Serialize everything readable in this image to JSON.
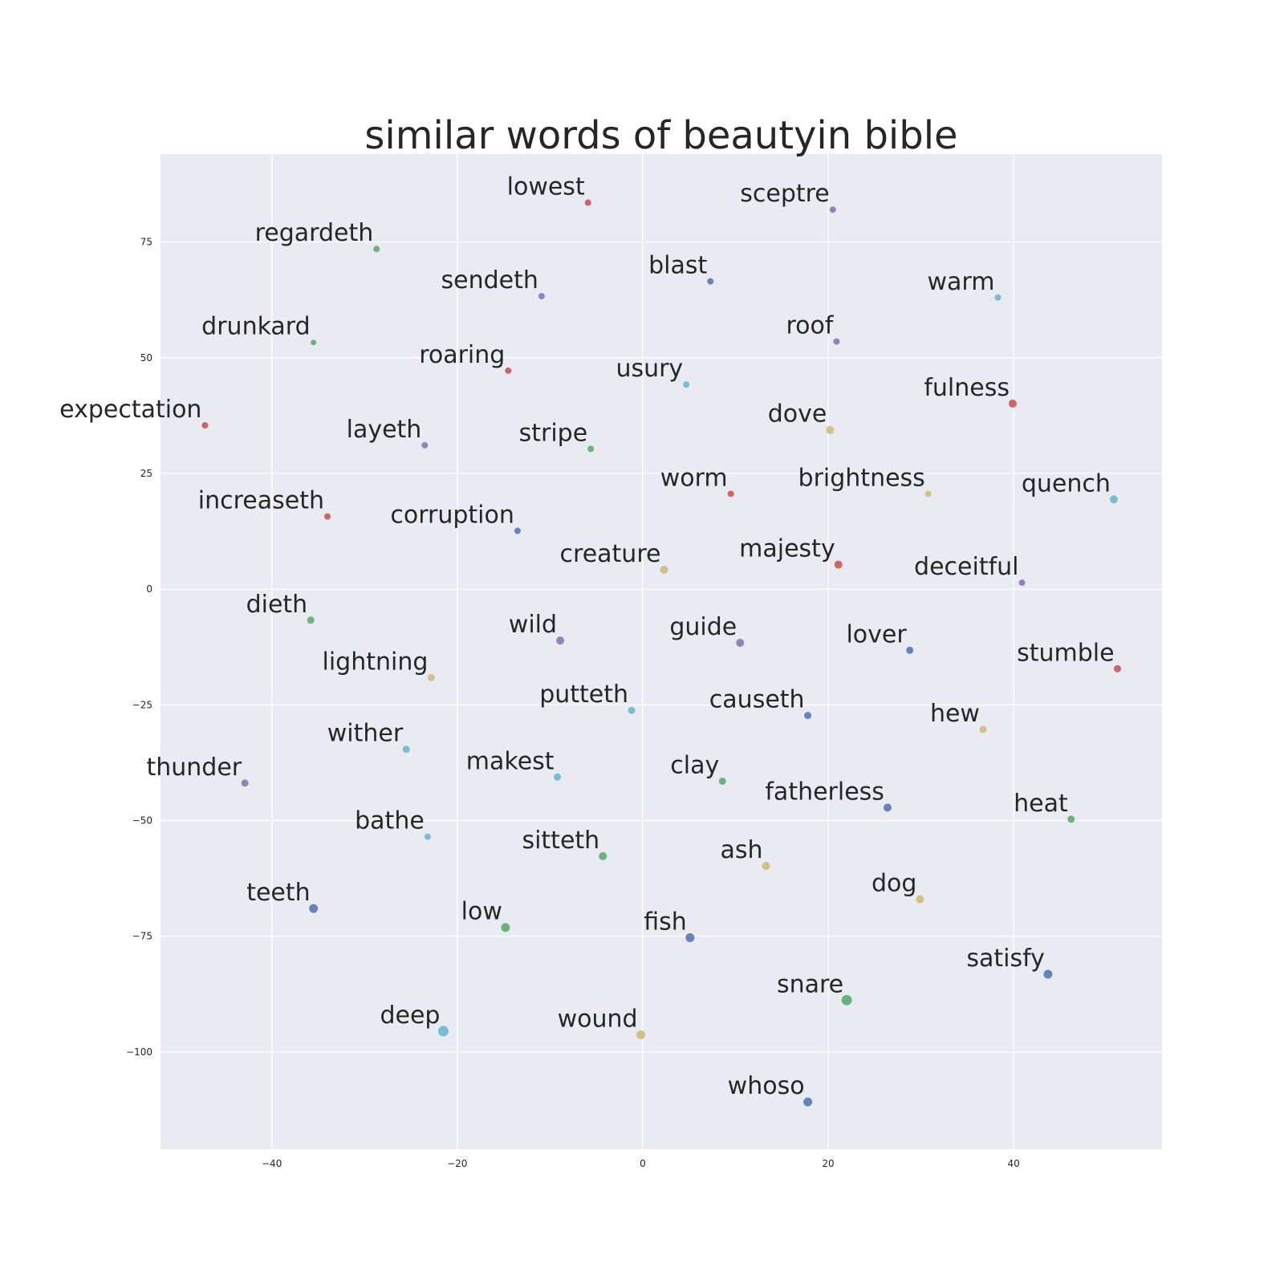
{
  "chart_data": {
    "type": "scatter",
    "title": "similar words of beautyin bible",
    "xlabel": "",
    "ylabel": "",
    "xlim": [
      -52,
      56
    ],
    "ylim": [
      -121,
      94
    ],
    "xticks": [
      -40,
      -20,
      0,
      20,
      40
    ],
    "yticks": [
      75,
      50,
      25,
      0,
      -25,
      -50,
      -75,
      -100
    ],
    "grid": true,
    "background": "#EAEAF2",
    "palette": {
      "blue": "#4C72B0",
      "green": "#55A868",
      "red": "#C44E52",
      "purple": "#8172B2",
      "yellow": "#CCB974",
      "cyan": "#64B5CD"
    },
    "points": [
      {
        "label": "lowest",
        "x": -5.9,
        "y": 83.5,
        "size": 4,
        "color": "red"
      },
      {
        "label": "sceptre",
        "x": 20.5,
        "y": 82.0,
        "size": 4,
        "color": "purple"
      },
      {
        "label": "regardeth",
        "x": -28.7,
        "y": 73.5,
        "size": 4,
        "color": "green"
      },
      {
        "label": "blast",
        "x": 7.3,
        "y": 66.5,
        "size": 4,
        "color": "blue"
      },
      {
        "label": "sendeth",
        "x": -10.9,
        "y": 63.3,
        "size": 4,
        "color": "purple"
      },
      {
        "label": "warm",
        "x": 38.3,
        "y": 63.0,
        "size": 4,
        "color": "cyan"
      },
      {
        "label": "drunkard",
        "x": -35.5,
        "y": 53.3,
        "size": 3.5,
        "color": "green"
      },
      {
        "label": "roof",
        "x": 20.9,
        "y": 53.5,
        "size": 4,
        "color": "purple"
      },
      {
        "label": "roaring",
        "x": -14.5,
        "y": 47.2,
        "size": 4,
        "color": "red"
      },
      {
        "label": "usury",
        "x": 4.7,
        "y": 44.2,
        "size": 4,
        "color": "cyan"
      },
      {
        "label": "fulness",
        "x": 39.9,
        "y": 40.1,
        "size": 5,
        "color": "red"
      },
      {
        "label": "expectation",
        "x": -47.2,
        "y": 35.4,
        "size": 4,
        "color": "red"
      },
      {
        "label": "dove",
        "x": 20.2,
        "y": 34.4,
        "size": 5,
        "color": "yellow"
      },
      {
        "label": "layeth",
        "x": -23.5,
        "y": 31.1,
        "size": 4,
        "color": "purple"
      },
      {
        "label": "stripe",
        "x": -5.6,
        "y": 30.3,
        "size": 4,
        "color": "green"
      },
      {
        "label": "worm",
        "x": 9.5,
        "y": 20.6,
        "size": 4,
        "color": "red"
      },
      {
        "label": "brightness",
        "x": 30.8,
        "y": 20.6,
        "size": 4,
        "color": "yellow"
      },
      {
        "label": "quench",
        "x": 50.8,
        "y": 19.4,
        "size": 5,
        "color": "cyan"
      },
      {
        "label": "increaseth",
        "x": -34.0,
        "y": 15.7,
        "size": 4,
        "color": "red"
      },
      {
        "label": "corruption",
        "x": -13.5,
        "y": 12.6,
        "size": 4,
        "color": "blue"
      },
      {
        "label": "creature",
        "x": 2.3,
        "y": 4.2,
        "size": 5,
        "color": "yellow"
      },
      {
        "label": "majesty",
        "x": 21.1,
        "y": 5.3,
        "size": 5,
        "color": "red"
      },
      {
        "label": "deceitful",
        "x": 40.9,
        "y": 1.4,
        "size": 4,
        "color": "purple"
      },
      {
        "label": "dieth",
        "x": -35.8,
        "y": -6.7,
        "size": 4.5,
        "color": "green"
      },
      {
        "label": "wild",
        "x": -8.9,
        "y": -11.1,
        "size": 5,
        "color": "purple"
      },
      {
        "label": "guide",
        "x": 10.5,
        "y": -11.6,
        "size": 5,
        "color": "purple"
      },
      {
        "label": "lover",
        "x": 28.8,
        "y": -13.2,
        "size": 4.5,
        "color": "blue"
      },
      {
        "label": "stumble",
        "x": 51.2,
        "y": -17.2,
        "size": 4.5,
        "color": "red"
      },
      {
        "label": "lightning",
        "x": -22.8,
        "y": -19.1,
        "size": 4.5,
        "color": "yellow"
      },
      {
        "label": "putteth",
        "x": -1.2,
        "y": -26.2,
        "size": 4.5,
        "color": "cyan"
      },
      {
        "label": "causeth",
        "x": 17.8,
        "y": -27.3,
        "size": 4.5,
        "color": "blue"
      },
      {
        "label": "hew",
        "x": 36.7,
        "y": -30.3,
        "size": 4.5,
        "color": "yellow"
      },
      {
        "label": "wither",
        "x": -25.5,
        "y": -34.6,
        "size": 4.5,
        "color": "cyan"
      },
      {
        "label": "makest",
        "x": -9.2,
        "y": -40.6,
        "size": 4.5,
        "color": "cyan"
      },
      {
        "label": "clay",
        "x": 8.6,
        "y": -41.5,
        "size": 4.5,
        "color": "green"
      },
      {
        "label": "thunder",
        "x": -42.9,
        "y": -41.9,
        "size": 4.5,
        "color": "purple"
      },
      {
        "label": "fatherless",
        "x": 26.4,
        "y": -47.2,
        "size": 5,
        "color": "blue"
      },
      {
        "label": "heat",
        "x": 46.2,
        "y": -49.7,
        "size": 4.5,
        "color": "green"
      },
      {
        "label": "bathe",
        "x": -23.2,
        "y": -53.5,
        "size": 4,
        "color": "cyan"
      },
      {
        "label": "sitteth",
        "x": -4.3,
        "y": -57.7,
        "size": 5,
        "color": "green"
      },
      {
        "label": "ash",
        "x": 13.3,
        "y": -59.8,
        "size": 5,
        "color": "yellow"
      },
      {
        "label": "dog",
        "x": 29.9,
        "y": -67.0,
        "size": 5,
        "color": "yellow"
      },
      {
        "label": "teeth",
        "x": -35.5,
        "y": -69.0,
        "size": 5.5,
        "color": "blue"
      },
      {
        "label": "low",
        "x": -14.8,
        "y": -73.1,
        "size": 5.5,
        "color": "green"
      },
      {
        "label": "fish",
        "x": 5.1,
        "y": -75.3,
        "size": 5.5,
        "color": "blue"
      },
      {
        "label": "satisfy",
        "x": 43.7,
        "y": -83.2,
        "size": 5.5,
        "color": "blue"
      },
      {
        "label": "snare",
        "x": 22.0,
        "y": -88.8,
        "size": 6.5,
        "color": "green"
      },
      {
        "label": "deep",
        "x": -21.5,
        "y": -95.5,
        "size": 6.5,
        "color": "cyan"
      },
      {
        "label": "wound",
        "x": -0.2,
        "y": -96.3,
        "size": 5.5,
        "color": "yellow"
      },
      {
        "label": "whoso",
        "x": 17.8,
        "y": -110.8,
        "size": 5.5,
        "color": "blue"
      }
    ]
  }
}
